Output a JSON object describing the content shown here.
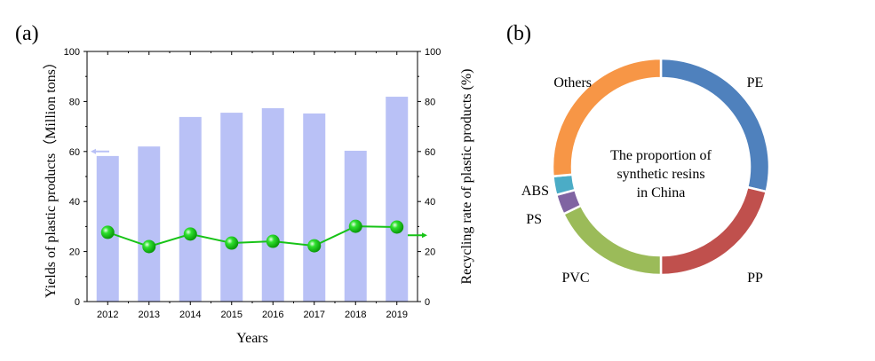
{
  "chart_data": [
    {
      "panel_label": "(a)",
      "type": "bar",
      "categories": [
        "2012",
        "2013",
        "2014",
        "2015",
        "2016",
        "2017",
        "2018",
        "2019"
      ],
      "series": [
        {
          "name": "Yields of plastic products",
          "type": "bar",
          "axis": "left",
          "color": "#b9c1f6",
          "values": [
            58.2,
            62.0,
            73.8,
            75.5,
            77.3,
            75.2,
            60.3,
            81.9
          ]
        },
        {
          "name": "Recycling rate of plastic products",
          "type": "line",
          "axis": "right",
          "color": "#17c317",
          "values": [
            27.7,
            22.0,
            27.0,
            23.4,
            24.1,
            22.3,
            30.1,
            29.8
          ]
        }
      ],
      "xlabel": "Years",
      "ylabel": "Yields of plastic products（Million tons）",
      "y2label": "Recycling rate of plastic products (%)",
      "ylim": [
        0,
        100
      ],
      "y2lim": [
        0,
        100
      ],
      "yticks": [
        "0",
        "20",
        "40",
        "60",
        "80",
        "100"
      ],
      "y2ticks": [
        "0",
        "20",
        "40",
        "60",
        "80",
        "100"
      ],
      "grid": false
    },
    {
      "panel_label": "(b)",
      "type": "pie",
      "donut": true,
      "center_text": [
        "The proportion of",
        "synthetic resins",
        "in China"
      ],
      "slices": [
        {
          "label": "PE",
          "value": 28.7,
          "color": "#4f81bd"
        },
        {
          "label": "PP",
          "value": 21.3,
          "color": "#c0504d"
        },
        {
          "label": "PVC",
          "value": 17.8,
          "color": "#9bbb59"
        },
        {
          "label": "PS",
          "value": 3.0,
          "color": "#8064a2"
        },
        {
          "label": "ABS",
          "value": 2.8,
          "color": "#4bacc6"
        },
        {
          "label": "Others",
          "value": 26.4,
          "color": "#f79646"
        }
      ]
    }
  ]
}
